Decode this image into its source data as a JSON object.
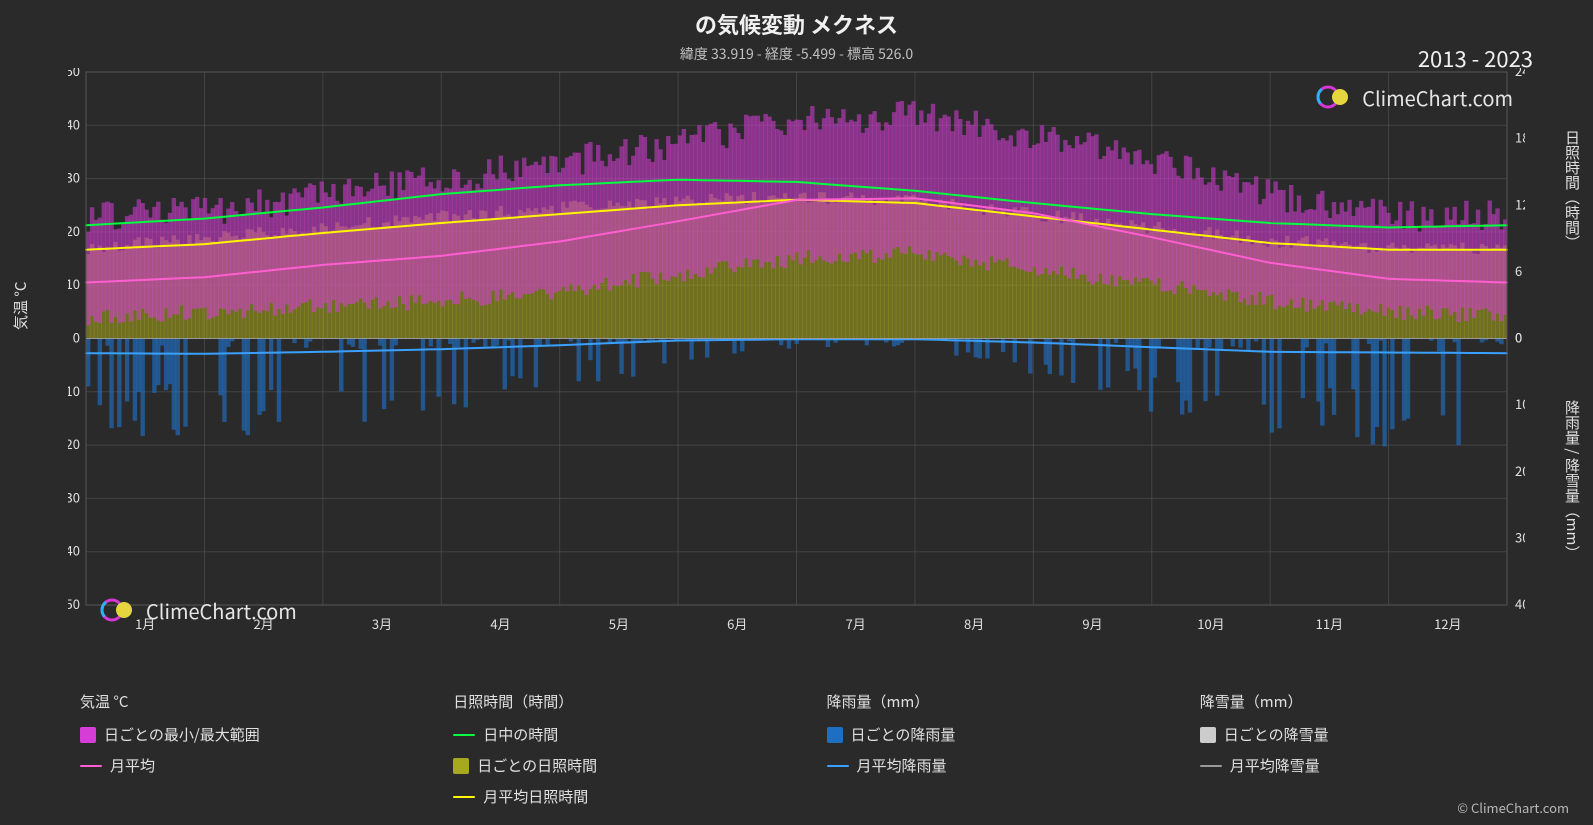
{
  "title": "の気候変動 メクネス",
  "subtitle": "緯度 33.919 - 経度 -5.499 - 標高 526.0",
  "year_range": "2013 - 2023",
  "watermark_text": "ClimeChart.com",
  "copyright": "© ClimeChart.com",
  "chart": {
    "background_color": "#2a2a2a",
    "grid_color": "#555555",
    "axis_color": "#e0e0e0",
    "tick_fontsize": 13,
    "months": [
      "1月",
      "2月",
      "3月",
      "4月",
      "5月",
      "6月",
      "7月",
      "8月",
      "9月",
      "10月",
      "11月",
      "12月"
    ],
    "left_axis": {
      "label": "気温 °C",
      "min": -50,
      "max": 50,
      "step": 10
    },
    "right_axis_top": {
      "label": "日照時間（時間）",
      "min": 0,
      "max": 24,
      "step": 6
    },
    "right_axis_bottom": {
      "label": "降雨量 / 降雪量（mm）",
      "min": 0,
      "max": 40,
      "step": 10
    },
    "series": {
      "daylight": {
        "color": "#00ff3c",
        "width": 2,
        "values_hours": [
          10.2,
          10.8,
          11.8,
          13.0,
          13.8,
          14.3,
          14.1,
          13.3,
          12.2,
          11.2,
          10.4,
          10.0
        ]
      },
      "avg_sunshine": {
        "color": "#fff600",
        "width": 2,
        "values_hours": [
          8.0,
          8.5,
          9.5,
          10.4,
          11.2,
          12.0,
          12.5,
          12.2,
          11.0,
          9.8,
          8.6,
          8.0
        ]
      },
      "avg_temp": {
        "color": "#ff5ed1",
        "width": 2,
        "values_c": [
          10.5,
          11.5,
          13.8,
          15.5,
          18.2,
          22.0,
          26.0,
          26.3,
          23.5,
          19.0,
          14.2,
          11.2
        ]
      },
      "avg_rain": {
        "color": "#3aa0ff",
        "width": 2,
        "values_mm": [
          2.2,
          2.3,
          2.0,
          1.6,
          1.0,
          0.3,
          0.1,
          0.1,
          0.6,
          1.3,
          2.0,
          2.1
        ]
      },
      "avg_snow": {
        "color": "#999999",
        "width": 2,
        "values_mm": [
          0,
          0,
          0,
          0,
          0,
          0,
          0,
          0,
          0,
          0,
          0,
          0
        ]
      },
      "temp_range_fill": {
        "color": "#d63cd6",
        "opacity": 0.55,
        "min_c": [
          4,
          5,
          6,
          7,
          9,
          12,
          15,
          16,
          13,
          10,
          7,
          5
        ],
        "max_c": [
          23,
          24,
          27,
          30,
          33,
          37,
          41,
          42,
          38,
          33,
          27,
          23
        ]
      },
      "daily_sunshine_fill": {
        "color": "#a8a81e",
        "opacity": 0.55,
        "upper_hours": [
          8.2,
          9.0,
          10.0,
          11.0,
          11.8,
          12.3,
          12.8,
          12.4,
          11.2,
          10.0,
          8.8,
          8.2
        ]
      },
      "daily_rain_bars": {
        "color": "#1e6fc2",
        "opacity": 0.65,
        "peaks_mm": [
          12,
          11,
          10,
          9,
          6,
          3,
          1,
          1,
          4,
          8,
          11,
          12
        ]
      },
      "daily_snow_bars": {
        "color": "#cccccc",
        "opacity": 0.5
      }
    }
  },
  "legend": {
    "groups": [
      {
        "header": "気温 °C",
        "items": [
          {
            "type": "box",
            "color": "#d63cd6",
            "label": "日ごとの最小/最大範囲"
          },
          {
            "type": "line",
            "color": "#ff5ed1",
            "label": "月平均"
          }
        ]
      },
      {
        "header": "日照時間（時間）",
        "items": [
          {
            "type": "line",
            "color": "#00ff3c",
            "label": "日中の時間"
          },
          {
            "type": "box",
            "color": "#a8a81e",
            "label": "日ごとの日照時間"
          },
          {
            "type": "line",
            "color": "#fff600",
            "label": "月平均日照時間"
          }
        ]
      },
      {
        "header": "降雨量（mm）",
        "items": [
          {
            "type": "box",
            "color": "#1e6fc2",
            "label": "日ごとの降雨量"
          },
          {
            "type": "line",
            "color": "#3aa0ff",
            "label": "月平均降雨量"
          }
        ]
      },
      {
        "header": "降雪量（mm）",
        "items": [
          {
            "type": "box",
            "color": "#cccccc",
            "label": "日ごとの降雪量"
          },
          {
            "type": "line",
            "color": "#999999",
            "label": "月平均降雪量"
          }
        ]
      }
    ]
  },
  "logo_colors": {
    "ring_magenta": "#e038e0",
    "ring_cyan": "#2fb8ff",
    "sun": "#f0e040"
  }
}
